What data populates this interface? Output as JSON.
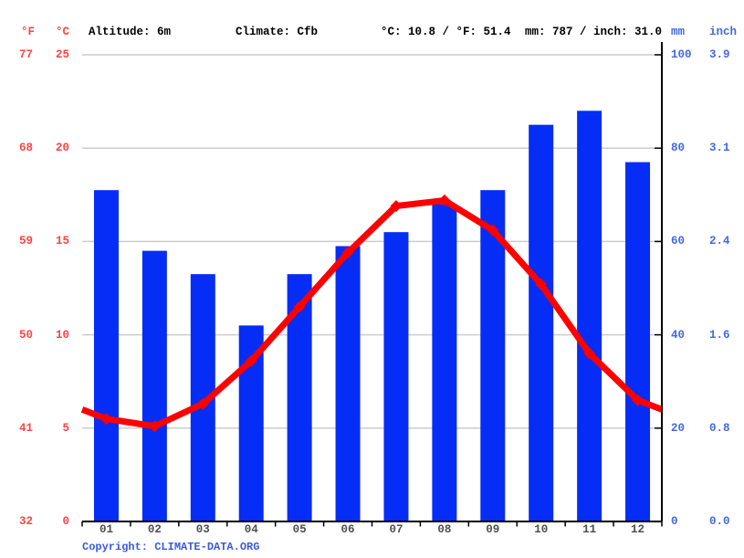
{
  "header": {
    "f_unit": "°F",
    "c_unit": "°C",
    "altitude": "Altitude: 6m",
    "climate": "Climate: Cfb",
    "temperature_summary": "°C: 10.8 / °F: 51.4",
    "precipitation_summary": "mm: 787 / inch: 31.0",
    "mm_unit": "mm",
    "inch_unit": "inch"
  },
  "footer": {
    "copyright_prefix": "Copyright: ",
    "copyright_link": "CLIMATE-DATA.ORG"
  },
  "colors": {
    "bar": "#052df5",
    "line": "#ff0000",
    "left_axis_text": "#fb4545",
    "right_axis_text": "#4468e1",
    "month_text": "#4f4f4f",
    "grid": "#cccccc",
    "axis": "#000000",
    "link": "#3c5ae1"
  },
  "chart_data": {
    "type": "combo",
    "categories": [
      "01",
      "02",
      "03",
      "04",
      "05",
      "06",
      "07",
      "08",
      "09",
      "10",
      "11",
      "12"
    ],
    "series": [
      {
        "name": "precipitation_mm",
        "type": "bar",
        "values": [
          71,
          58,
          53,
          42,
          53,
          59,
          62,
          68,
          71,
          85,
          88,
          77
        ]
      },
      {
        "name": "temperature_c",
        "type": "line",
        "values": [
          5.5,
          5.1,
          6.3,
          8.6,
          11.5,
          14.4,
          16.9,
          17.2,
          15.6,
          12.7,
          9.0,
          6.5
        ]
      }
    ],
    "line_edge_extension_c": [
      6.0,
      6.0
    ],
    "axes": {
      "left_f_ticks": [
        "77",
        "68",
        "59",
        "50",
        "41",
        "32"
      ],
      "left_c_ticks": [
        "25",
        "20",
        "15",
        "10",
        "5",
        "0"
      ],
      "right_mm_ticks": [
        "100",
        "80",
        "60",
        "40",
        "20",
        "0"
      ],
      "right_inch_ticks": [
        "3.9",
        "3.1",
        "2.4",
        "1.6",
        "0.8",
        "0.0"
      ]
    },
    "temp_axis_c_range": [
      0,
      25
    ],
    "precip_axis_mm_range": [
      0,
      100
    ],
    "grid": true,
    "legend": "none"
  }
}
